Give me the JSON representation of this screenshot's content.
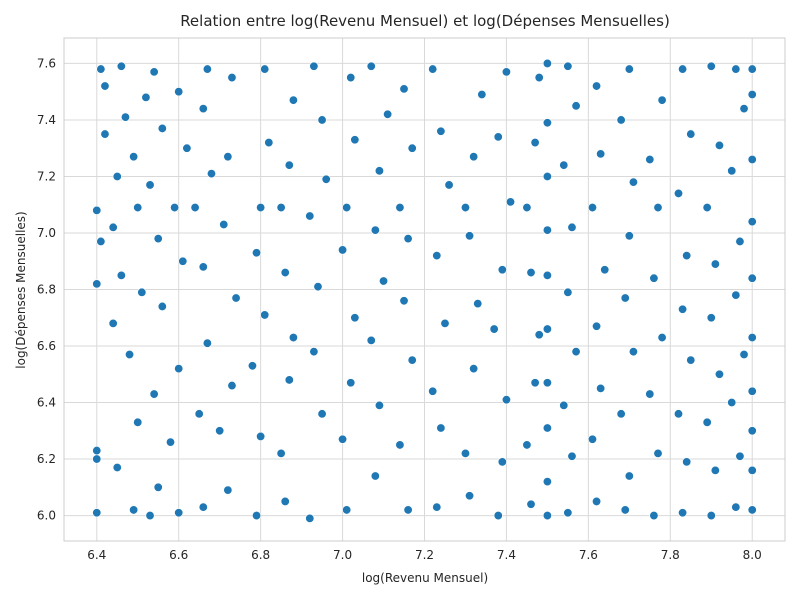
{
  "chart_data": {
    "type": "scatter",
    "title": "Relation entre log(Revenu Mensuel) et log(Dépenses Mensuelles)",
    "xlabel": "log(Revenu Mensuel)",
    "ylabel": "log(Dépenses Mensuelles)",
    "xlim": [
      6.32,
      8.08
    ],
    "ylim": [
      5.91,
      7.69
    ],
    "xticks": [
      "6.4",
      "6.6",
      "6.8",
      "7.0",
      "7.2",
      "7.4",
      "7.6",
      "7.8",
      "8.0"
    ],
    "yticks": [
      "6.0",
      "6.2",
      "6.4",
      "6.6",
      "6.8",
      "7.0",
      "7.2",
      "7.4",
      "7.6"
    ],
    "grid": true,
    "series": [
      {
        "color": "#1f77b4",
        "points": [
          [
            6.4,
            6.01
          ],
          [
            6.4,
            6.23
          ],
          [
            6.4,
            6.2
          ],
          [
            6.4,
            6.82
          ],
          [
            6.41,
            6.97
          ],
          [
            6.4,
            7.08
          ],
          [
            6.42,
            7.35
          ],
          [
            6.42,
            7.52
          ],
          [
            6.41,
            7.58
          ],
          [
            6.45,
            6.17
          ],
          [
            6.44,
            6.68
          ],
          [
            6.46,
            6.85
          ],
          [
            6.44,
            7.02
          ],
          [
            6.45,
            7.2
          ],
          [
            6.47,
            7.41
          ],
          [
            6.46,
            7.59
          ],
          [
            6.49,
            6.02
          ],
          [
            6.5,
            6.33
          ],
          [
            6.48,
            6.57
          ],
          [
            6.51,
            6.79
          ],
          [
            6.5,
            7.09
          ],
          [
            6.49,
            7.27
          ],
          [
            6.52,
            7.48
          ],
          [
            6.53,
            6.0
          ],
          [
            6.55,
            6.1
          ],
          [
            6.54,
            6.43
          ],
          [
            6.56,
            6.74
          ],
          [
            6.55,
            6.98
          ],
          [
            6.53,
            7.17
          ],
          [
            6.56,
            7.37
          ],
          [
            6.54,
            7.57
          ],
          [
            6.6,
            6.01
          ],
          [
            6.58,
            6.26
          ],
          [
            6.6,
            6.52
          ],
          [
            6.61,
            6.9
          ],
          [
            6.59,
            7.09
          ],
          [
            6.62,
            7.3
          ],
          [
            6.6,
            7.5
          ],
          [
            6.66,
            6.03
          ],
          [
            6.65,
            6.36
          ],
          [
            6.67,
            6.61
          ],
          [
            6.66,
            6.88
          ],
          [
            6.64,
            7.09
          ],
          [
            6.68,
            7.21
          ],
          [
            6.66,
            7.44
          ],
          [
            6.67,
            7.58
          ],
          [
            6.72,
            6.09
          ],
          [
            6.7,
            6.3
          ],
          [
            6.73,
            6.46
          ],
          [
            6.74,
            6.77
          ],
          [
            6.71,
            7.03
          ],
          [
            6.72,
            7.27
          ],
          [
            6.73,
            7.55
          ],
          [
            6.79,
            6.0
          ],
          [
            6.8,
            6.28
          ],
          [
            6.78,
            6.53
          ],
          [
            6.81,
            6.71
          ],
          [
            6.79,
            6.93
          ],
          [
            6.8,
            7.09
          ],
          [
            6.82,
            7.32
          ],
          [
            6.81,
            7.58
          ],
          [
            6.86,
            6.05
          ],
          [
            6.85,
            6.22
          ],
          [
            6.87,
            6.48
          ],
          [
            6.88,
            6.63
          ],
          [
            6.86,
            6.86
          ],
          [
            6.85,
            7.09
          ],
          [
            6.87,
            7.24
          ],
          [
            6.88,
            7.47
          ],
          [
            6.92,
            5.99
          ],
          [
            6.95,
            6.36
          ],
          [
            6.93,
            6.58
          ],
          [
            6.94,
            6.81
          ],
          [
            6.92,
            7.06
          ],
          [
            6.96,
            7.19
          ],
          [
            6.95,
            7.4
          ],
          [
            6.93,
            7.59
          ],
          [
            7.01,
            6.02
          ],
          [
            7.0,
            6.27
          ],
          [
            7.02,
            6.47
          ],
          [
            7.03,
            6.7
          ],
          [
            7.0,
            6.94
          ],
          [
            7.01,
            7.09
          ],
          [
            7.03,
            7.33
          ],
          [
            7.02,
            7.55
          ],
          [
            7.08,
            6.14
          ],
          [
            7.09,
            6.39
          ],
          [
            7.07,
            6.62
          ],
          [
            7.1,
            6.83
          ],
          [
            7.08,
            7.01
          ],
          [
            7.09,
            7.22
          ],
          [
            7.11,
            7.42
          ],
          [
            7.07,
            7.59
          ],
          [
            7.16,
            6.02
          ],
          [
            7.14,
            6.25
          ],
          [
            7.17,
            6.55
          ],
          [
            7.15,
            6.76
          ],
          [
            7.16,
            6.98
          ],
          [
            7.14,
            7.09
          ],
          [
            7.17,
            7.3
          ],
          [
            7.15,
            7.51
          ],
          [
            7.23,
            6.03
          ],
          [
            7.24,
            6.31
          ],
          [
            7.22,
            6.44
          ],
          [
            7.25,
            6.68
          ],
          [
            7.23,
            6.92
          ],
          [
            7.26,
            7.17
          ],
          [
            7.24,
            7.36
          ],
          [
            7.22,
            7.58
          ],
          [
            7.31,
            6.07
          ],
          [
            7.3,
            6.22
          ],
          [
            7.32,
            6.52
          ],
          [
            7.33,
            6.75
          ],
          [
            7.31,
            6.99
          ],
          [
            7.3,
            7.09
          ],
          [
            7.32,
            7.27
          ],
          [
            7.34,
            7.49
          ],
          [
            7.38,
            6.0
          ],
          [
            7.39,
            6.19
          ],
          [
            7.4,
            6.41
          ],
          [
            7.37,
            6.66
          ],
          [
            7.39,
            6.87
          ],
          [
            7.41,
            7.11
          ],
          [
            7.38,
            7.34
          ],
          [
            7.4,
            7.57
          ],
          [
            7.46,
            6.04
          ],
          [
            7.45,
            6.25
          ],
          [
            7.47,
            6.47
          ],
          [
            7.48,
            6.64
          ],
          [
            7.46,
            6.86
          ],
          [
            7.45,
            7.09
          ],
          [
            7.47,
            7.32
          ],
          [
            7.48,
            7.55
          ],
          [
            7.5,
            6.0
          ],
          [
            7.5,
            6.12
          ],
          [
            7.5,
            6.31
          ],
          [
            7.5,
            6.47
          ],
          [
            7.5,
            6.66
          ],
          [
            7.5,
            6.85
          ],
          [
            7.5,
            7.01
          ],
          [
            7.5,
            7.2
          ],
          [
            7.5,
            7.39
          ],
          [
            7.5,
            7.6
          ],
          [
            7.55,
            6.01
          ],
          [
            7.56,
            6.21
          ],
          [
            7.54,
            6.39
          ],
          [
            7.57,
            6.58
          ],
          [
            7.55,
            6.79
          ],
          [
            7.56,
            7.02
          ],
          [
            7.54,
            7.24
          ],
          [
            7.57,
            7.45
          ],
          [
            7.55,
            7.59
          ],
          [
            7.62,
            6.05
          ],
          [
            7.61,
            6.27
          ],
          [
            7.63,
            6.45
          ],
          [
            7.62,
            6.67
          ],
          [
            7.64,
            6.87
          ],
          [
            7.61,
            7.09
          ],
          [
            7.63,
            7.28
          ],
          [
            7.62,
            7.52
          ],
          [
            7.69,
            6.02
          ],
          [
            7.7,
            6.14
          ],
          [
            7.68,
            6.36
          ],
          [
            7.71,
            6.58
          ],
          [
            7.69,
            6.77
          ],
          [
            7.7,
            6.99
          ],
          [
            7.71,
            7.18
          ],
          [
            7.68,
            7.4
          ],
          [
            7.7,
            7.58
          ],
          [
            7.76,
            6.0
          ],
          [
            7.77,
            6.22
          ],
          [
            7.75,
            6.43
          ],
          [
            7.78,
            6.63
          ],
          [
            7.76,
            6.84
          ],
          [
            7.77,
            7.09
          ],
          [
            7.75,
            7.26
          ],
          [
            7.78,
            7.47
          ],
          [
            7.83,
            6.01
          ],
          [
            7.84,
            6.19
          ],
          [
            7.82,
            6.36
          ],
          [
            7.85,
            6.55
          ],
          [
            7.83,
            6.73
          ],
          [
            7.84,
            6.92
          ],
          [
            7.82,
            7.14
          ],
          [
            7.85,
            7.35
          ],
          [
            7.83,
            7.58
          ],
          [
            7.9,
            6.0
          ],
          [
            7.91,
            6.16
          ],
          [
            7.89,
            6.33
          ],
          [
            7.92,
            6.5
          ],
          [
            7.9,
            6.7
          ],
          [
            7.91,
            6.89
          ],
          [
            7.89,
            7.09
          ],
          [
            7.92,
            7.31
          ],
          [
            7.9,
            7.59
          ],
          [
            7.96,
            6.03
          ],
          [
            7.97,
            6.21
          ],
          [
            7.95,
            6.4
          ],
          [
            7.98,
            6.57
          ],
          [
            7.96,
            6.78
          ],
          [
            7.97,
            6.97
          ],
          [
            7.95,
            7.22
          ],
          [
            7.98,
            7.44
          ],
          [
            7.96,
            7.58
          ],
          [
            8.0,
            6.02
          ],
          [
            8.0,
            6.16
          ],
          [
            8.0,
            6.3
          ],
          [
            8.0,
            6.44
          ],
          [
            8.0,
            6.63
          ],
          [
            8.0,
            6.84
          ],
          [
            8.0,
            7.04
          ],
          [
            8.0,
            7.26
          ],
          [
            8.0,
            7.49
          ],
          [
            8.0,
            7.58
          ]
        ]
      }
    ]
  }
}
